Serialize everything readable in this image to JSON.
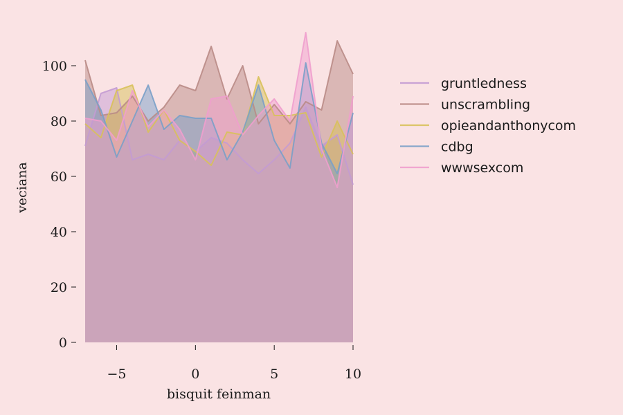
{
  "chart_data": {
    "type": "area",
    "xlabel": "bisquit feinman",
    "ylabel": "veciana",
    "xlim": [
      -7,
      10
    ],
    "ylim": [
      0,
      115
    ],
    "xticks": [
      -5,
      0,
      5,
      10
    ],
    "xtick_labels": [
      "−5",
      "0",
      "5",
      "10"
    ],
    "yticks": [
      0,
      20,
      40,
      60,
      80,
      100
    ],
    "ytick_labels": [
      "0",
      "20",
      "40",
      "60",
      "80",
      "100"
    ],
    "grid": false,
    "legend_position": "right",
    "x": [
      -7,
      -6,
      -5,
      -4,
      -3,
      -2,
      -1,
      0,
      1,
      2,
      3,
      4,
      5,
      6,
      7,
      8,
      9,
      10
    ],
    "series": [
      {
        "name": "gruntledness",
        "color": "#c39bd3",
        "values": [
          71,
          90,
          92,
          66,
          68,
          66,
          73,
          69,
          74,
          72,
          66,
          61,
          66,
          72,
          85,
          71,
          75,
          57
        ]
      },
      {
        "name": "unscrambling",
        "color": "#b98b86",
        "values": [
          102,
          82,
          83,
          89,
          80,
          85,
          93,
          91,
          107,
          88,
          100,
          79,
          86,
          79,
          87,
          84,
          109,
          97
        ]
      },
      {
        "name": "opieandanthonycom",
        "color": "#d8c15a",
        "values": [
          79,
          74,
          91,
          93,
          76,
          84,
          73,
          69,
          64,
          76,
          75,
          96,
          82,
          82,
          83,
          67,
          80,
          68
        ]
      },
      {
        "name": "cdbg",
        "color": "#7aa0c8",
        "values": [
          95,
          84,
          67,
          80,
          93,
          77,
          82,
          81,
          81,
          66,
          76,
          93,
          73,
          63,
          101,
          72,
          61,
          83
        ]
      },
      {
        "name": "wwwsexcom",
        "color": "#ef9fcd",
        "values": [
          81,
          80,
          73,
          91,
          78,
          84,
          77,
          66,
          88,
          89,
          75,
          82,
          88,
          80,
          112,
          70,
          56,
          89
        ]
      }
    ]
  }
}
